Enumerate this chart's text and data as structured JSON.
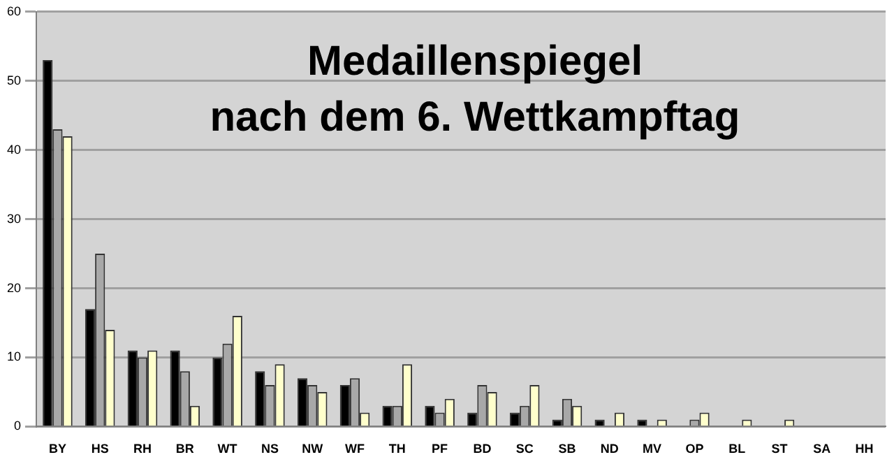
{
  "chart_data": {
    "type": "bar",
    "title": "Medaillenspiegel\nnach dem 6. Wettkampftag",
    "categories": [
      "BY",
      "HS",
      "RH",
      "BR",
      "WT",
      "NS",
      "NW",
      "WF",
      "TH",
      "PF",
      "BD",
      "SC",
      "SB",
      "ND",
      "MV",
      "OP",
      "BL",
      "ST",
      "SA",
      "HH"
    ],
    "series": [
      {
        "color": "#000000",
        "values": [
          53,
          17,
          11,
          11,
          10,
          8,
          7,
          6,
          3,
          3,
          2,
          2,
          1,
          1,
          1,
          0,
          0,
          0,
          0,
          0
        ]
      },
      {
        "color": "#a8a8a8",
        "values": [
          43,
          25,
          10,
          8,
          12,
          6,
          6,
          7,
          3,
          2,
          6,
          3,
          4,
          0,
          0,
          1,
          0,
          0,
          0,
          0
        ]
      },
      {
        "color": "#ffffcc",
        "values": [
          42,
          14,
          11,
          3,
          16,
          9,
          5,
          2,
          9,
          4,
          5,
          6,
          3,
          2,
          1,
          2,
          1,
          1,
          0,
          0
        ]
      }
    ],
    "ylim": [
      0,
      60
    ],
    "yticks": [
      0,
      10,
      20,
      30,
      40,
      50,
      60
    ],
    "grid": "y",
    "legend": false
  }
}
